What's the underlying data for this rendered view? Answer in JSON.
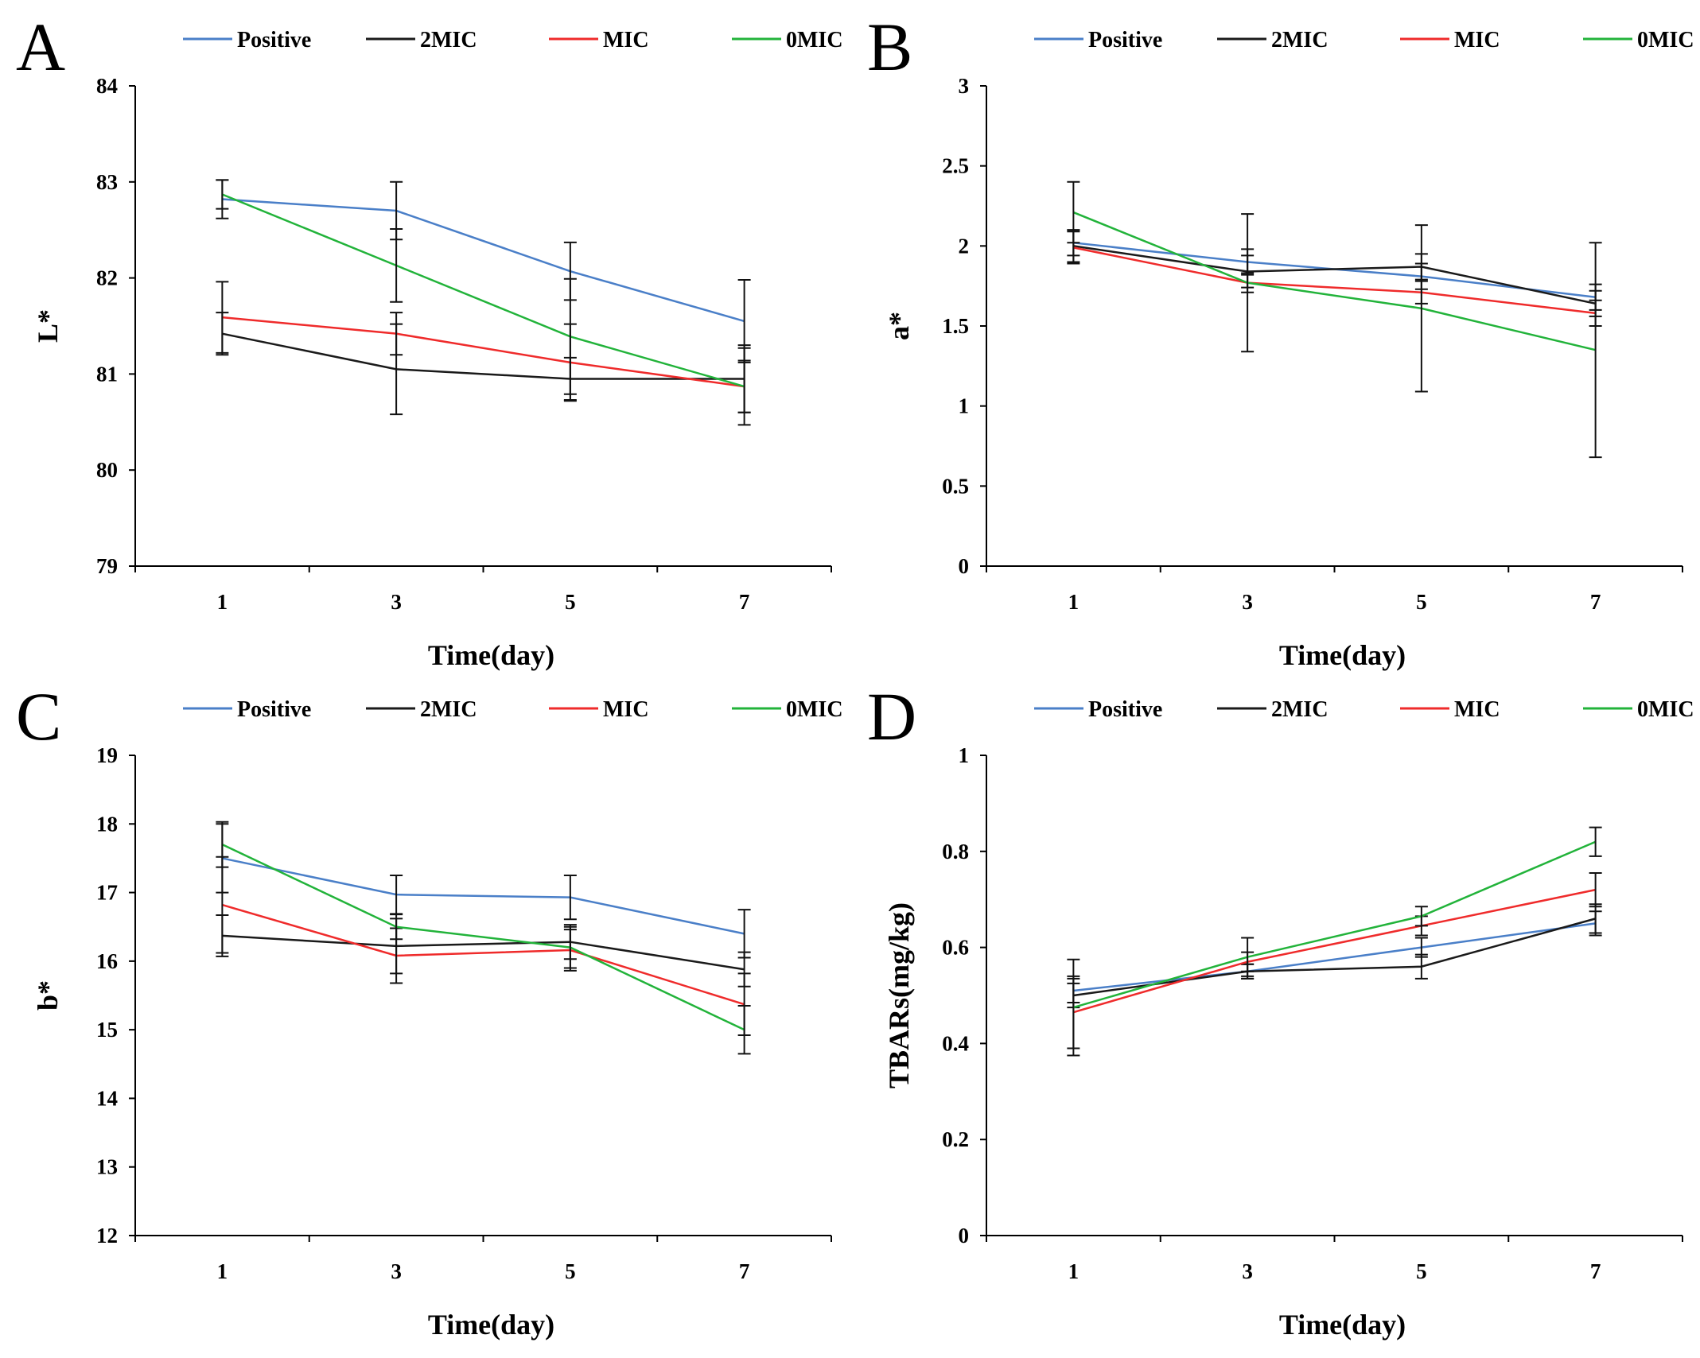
{
  "series_colors": {
    "Positive": "#4a7fc8",
    "2MIC": "#1a1a1a",
    "MIC": "#ef2b2b",
    "0MIC": "#22b33a"
  },
  "legend": [
    "Positive",
    "2MIC",
    "MIC",
    "0MIC"
  ],
  "chart_data": [
    {
      "panel": "A",
      "type": "line",
      "title": "",
      "xlabel": "Time(day)",
      "ylabel": "L*",
      "x": [
        1,
        3,
        5,
        7
      ],
      "ylim": [
        79,
        84
      ],
      "yticks": [
        "79",
        "80",
        "81",
        "82",
        "83",
        "84"
      ],
      "series": [
        {
          "name": "Positive",
          "values": [
            82.82,
            82.7,
            82.07,
            81.55
          ],
          "errors": [
            0.2,
            0.3,
            0.3,
            0.43
          ]
        },
        {
          "name": "2MIC",
          "values": [
            81.42,
            81.05,
            80.95,
            80.95
          ],
          "errors": [
            0.22,
            0.47,
            0.22,
            0.35
          ]
        },
        {
          "name": "MIC",
          "values": [
            81.59,
            81.42,
            81.12,
            80.87
          ],
          "errors": [
            0.37,
            0.22,
            0.4,
            0.27
          ]
        },
        {
          "name": "0MIC",
          "values": [
            82.87,
            82.13,
            81.39,
            80.87
          ],
          "errors": [
            0.15,
            0.38,
            0.6,
            0.4
          ]
        }
      ]
    },
    {
      "panel": "B",
      "type": "line",
      "title": "",
      "xlabel": "Time(day)",
      "ylabel": "a*",
      "x": [
        1,
        3,
        5,
        7
      ],
      "ylim": [
        0,
        3
      ],
      "yticks": [
        "0",
        "0.5",
        "1",
        "1.5",
        "2",
        "2.5",
        "3"
      ],
      "series": [
        {
          "name": "Positive",
          "values": [
            2.02,
            1.9,
            1.81,
            1.68
          ],
          "errors": [
            0.08,
            0.08,
            0.08,
            0.08
          ]
        },
        {
          "name": "2MIC",
          "values": [
            2.0,
            1.84,
            1.87,
            1.64
          ],
          "errors": [
            0.1,
            0.1,
            0.08,
            0.08
          ]
        },
        {
          "name": "MIC",
          "values": [
            1.99,
            1.77,
            1.71,
            1.58
          ],
          "errors": [
            0.1,
            0.06,
            0.07,
            0.08
          ]
        },
        {
          "name": "0MIC",
          "values": [
            2.21,
            1.77,
            1.61,
            1.35
          ],
          "errors": [
            0.19,
            0.43,
            0.52,
            0.67
          ]
        }
      ]
    },
    {
      "panel": "C",
      "type": "line",
      "title": "",
      "xlabel": "Time(day)",
      "ylabel": "b*",
      "x": [
        1,
        3,
        5,
        7
      ],
      "ylim": [
        12,
        19
      ],
      "yticks": [
        "12",
        "13",
        "14",
        "15",
        "16",
        "17",
        "18",
        "19"
      ],
      "series": [
        {
          "name": "Positive",
          "values": [
            17.5,
            16.97,
            16.93,
            16.4
          ],
          "errors": [
            0.5,
            0.28,
            0.32,
            0.35
          ]
        },
        {
          "name": "2MIC",
          "values": [
            16.37,
            16.22,
            16.28,
            15.88
          ],
          "errors": [
            0.3,
            0.4,
            0.25,
            0.25
          ]
        },
        {
          "name": "MIC",
          "values": [
            16.82,
            16.08,
            16.16,
            15.37
          ],
          "errors": [
            0.7,
            0.4,
            0.3,
            0.45
          ]
        },
        {
          "name": "0MIC",
          "values": [
            17.7,
            16.5,
            16.2,
            15.0
          ],
          "errors": [
            0.33,
            0.18,
            0.3,
            0.35
          ]
        }
      ]
    },
    {
      "panel": "D",
      "type": "line",
      "title": "",
      "xlabel": "Time(day)",
      "ylabel": "TBARs(mg/kg)",
      "x": [
        1,
        3,
        5,
        7
      ],
      "ylim": [
        0,
        1
      ],
      "yticks": [
        "0",
        "0.2",
        "0.4",
        "0.6",
        "0.8",
        "1"
      ],
      "series": [
        {
          "name": "Positive",
          "values": [
            0.51,
            0.55,
            0.6,
            0.65
          ],
          "errors": [
            0.025,
            0.015,
            0.02,
            0.025
          ]
        },
        {
          "name": "2MIC",
          "values": [
            0.5,
            0.55,
            0.56,
            0.66
          ],
          "errors": [
            0.025,
            0.015,
            0.025,
            0.03
          ]
        },
        {
          "name": "MIC",
          "values": [
            0.465,
            0.57,
            0.645,
            0.72
          ],
          "errors": [
            0.075,
            0.02,
            0.02,
            0.035
          ]
        },
        {
          "name": "0MIC",
          "values": [
            0.475,
            0.58,
            0.665,
            0.82
          ],
          "errors": [
            0.1,
            0.04,
            0.02,
            0.03
          ]
        }
      ]
    }
  ]
}
